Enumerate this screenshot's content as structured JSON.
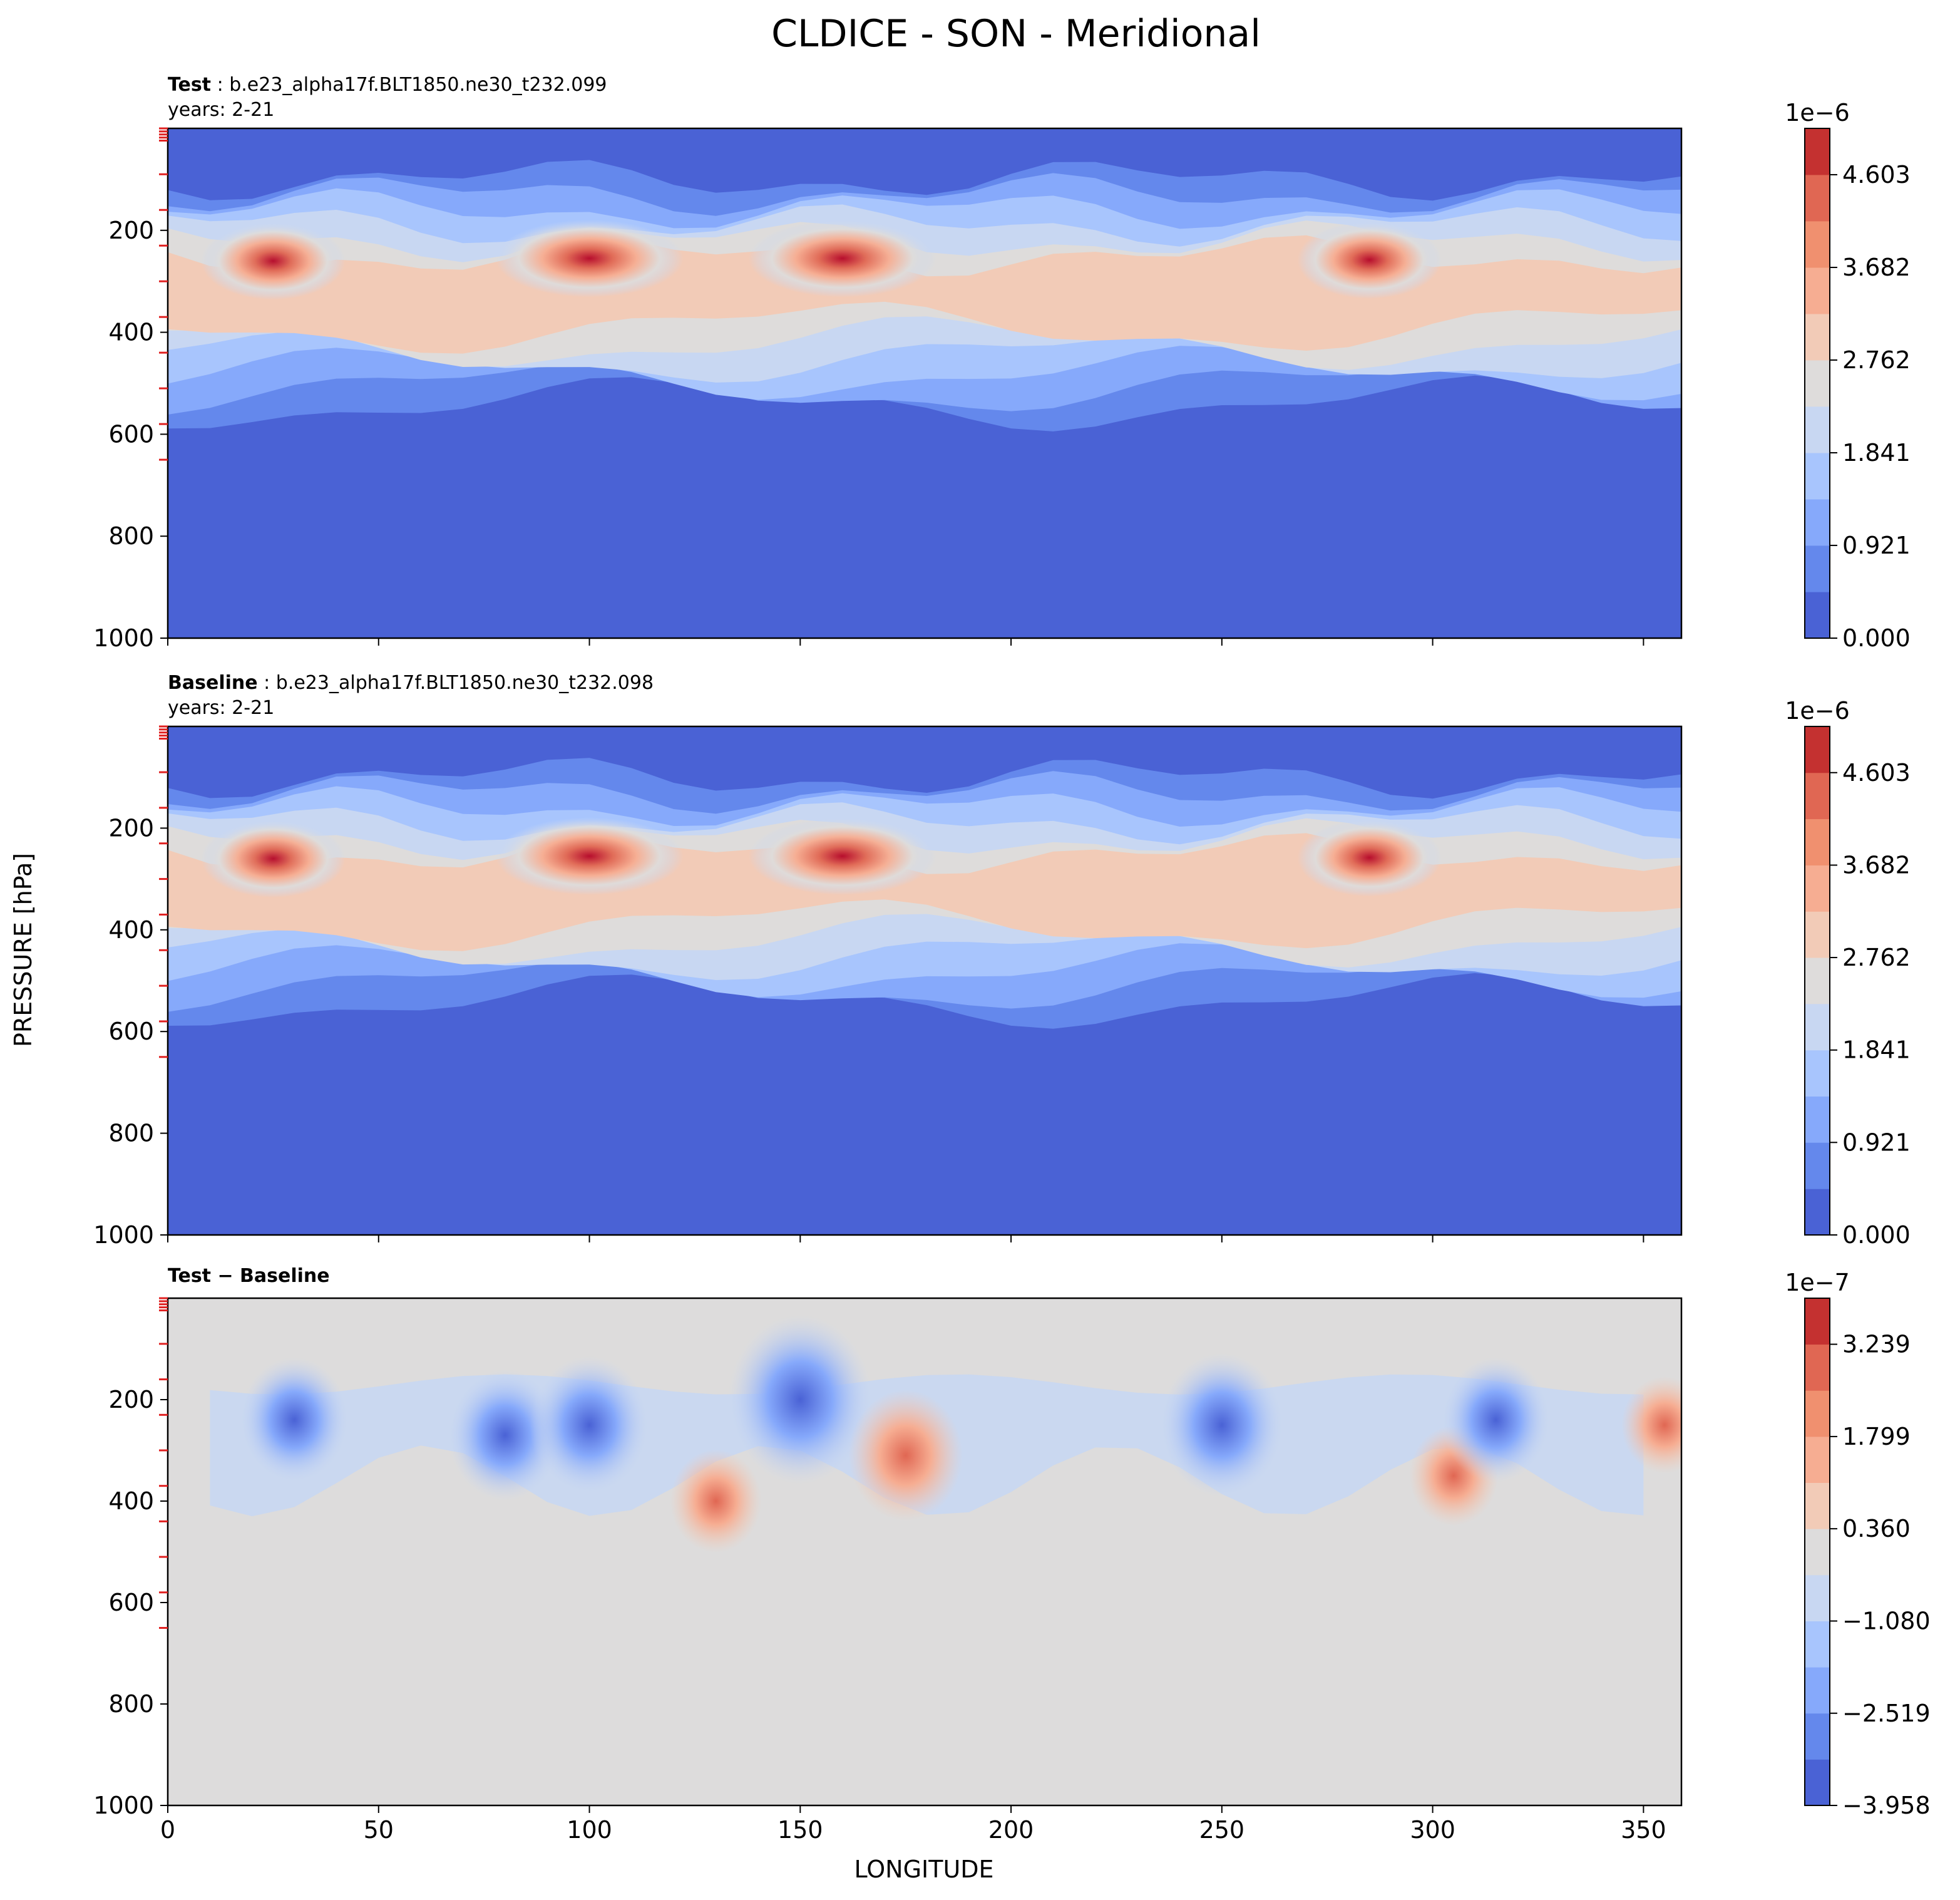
{
  "figure": {
    "title": "CLDICE - SON - Meridional",
    "ylabel": "PRESSURE [hPa]",
    "xlabel": "LONGITUDE",
    "x_ticks": [
      "0",
      "50",
      "100",
      "150",
      "200",
      "250",
      "300",
      "350"
    ],
    "y_ticks": [
      "200",
      "400",
      "600",
      "800",
      "1000"
    ]
  },
  "panels": [
    {
      "key": "test",
      "title_bold": "Test",
      "title_rest": ": b.e23_alpha17f.BLT1850.ne30_t232.099",
      "years": "years: 2-21",
      "colorbar_offset": "1e−6",
      "colorbar_ticks": [
        "0.000",
        "0.921",
        "1.841",
        "2.762",
        "3.682",
        "4.603"
      ]
    },
    {
      "key": "baseline",
      "title_bold": "Baseline",
      "title_rest": ": b.e23_alpha17f.BLT1850.ne30_t232.098",
      "years": "years: 2-21",
      "colorbar_offset": "1e−6",
      "colorbar_ticks": [
        "0.000",
        "0.921",
        "1.841",
        "2.762",
        "3.682",
        "4.603"
      ]
    },
    {
      "key": "diff",
      "title_bold": "Test − Baseline",
      "title_rest": "",
      "years": "",
      "colorbar_offset": "1e−7",
      "colorbar_ticks": [
        "−3.958",
        "−2.519",
        "−1.080",
        "0.360",
        "1.799",
        "3.239"
      ]
    }
  ],
  "chart_data": [
    {
      "type": "heatmap",
      "title": "Test : b.e23_alpha17f.BLT1850.ne30_t232.099",
      "subtitle": "years: 2-21",
      "xlabel": "",
      "ylabel": "PRESSURE [hPa]",
      "xlim": [
        0,
        359
      ],
      "ylim": [
        1000,
        0
      ],
      "x_ticks": [
        0,
        50,
        100,
        150,
        200,
        250,
        300,
        350
      ],
      "y_ticks": [
        200,
        400,
        600,
        800,
        1000
      ],
      "colorbar": {
        "scale": "1e-6",
        "ticks": [
          0.0,
          0.921,
          1.841,
          2.762,
          3.682,
          4.603
        ],
        "levels": [
          0.0,
          0.46,
          0.921,
          1.381,
          1.841,
          2.302,
          2.762,
          3.222,
          3.682,
          4.143,
          4.603,
          5.063
        ],
        "colors": [
          "#4a62d5",
          "#6488ec",
          "#86a9fb",
          "#a8c5fd",
          "#c8d7f2",
          "#dedcdb",
          "#f2cbb7",
          "#f6ad92",
          "#f0906f",
          "#e06753",
          "#c43130"
        ]
      },
      "cloud_bands": [
        {
          "lon": 25,
          "p": 260,
          "peak": 0.45
        },
        {
          "lon": 100,
          "p": 255,
          "peak": 0.45
        },
        {
          "lon": 160,
          "p": 255,
          "peak": 0.45
        },
        {
          "lon": 285,
          "p": 258,
          "peak": 0.45
        }
      ]
    },
    {
      "type": "heatmap",
      "title": "Baseline : b.e23_alpha17f.BLT1850.ne30_t232.098",
      "subtitle": "years: 2-21",
      "xlabel": "",
      "ylabel": "PRESSURE [hPa]",
      "xlim": [
        0,
        359
      ],
      "ylim": [
        1000,
        0
      ],
      "x_ticks": [
        0,
        50,
        100,
        150,
        200,
        250,
        300,
        350
      ],
      "y_ticks": [
        200,
        400,
        600,
        800,
        1000
      ],
      "colorbar": {
        "scale": "1e-6",
        "ticks": [
          0.0,
          0.921,
          1.841,
          2.762,
          3.682,
          4.603
        ],
        "levels": [
          0.0,
          0.46,
          0.921,
          1.381,
          1.841,
          2.302,
          2.762,
          3.222,
          3.682,
          4.143,
          4.603,
          5.063
        ],
        "colors": [
          "#4a62d5",
          "#6488ec",
          "#86a9fb",
          "#a8c5fd",
          "#c8d7f2",
          "#dedcdb",
          "#f2cbb7",
          "#f6ad92",
          "#f0906f",
          "#e06753",
          "#c43130"
        ]
      },
      "cloud_bands": [
        {
          "lon": 25,
          "p": 260,
          "peak": 0.45
        },
        {
          "lon": 100,
          "p": 255,
          "peak": 0.45
        },
        {
          "lon": 160,
          "p": 255,
          "peak": 0.45
        },
        {
          "lon": 285,
          "p": 258,
          "peak": 0.45
        }
      ]
    },
    {
      "type": "heatmap",
      "title": "Test − Baseline",
      "subtitle": "",
      "xlabel": "LONGITUDE",
      "ylabel": "PRESSURE [hPa]",
      "xlim": [
        0,
        359
      ],
      "ylim": [
        1000,
        0
      ],
      "x_ticks": [
        0,
        50,
        100,
        150,
        200,
        250,
        300,
        350
      ],
      "y_ticks": [
        200,
        400,
        600,
        800,
        1000
      ],
      "colorbar": {
        "scale": "1e-7",
        "ticks": [
          -3.958,
          -2.519,
          -1.08,
          0.36,
          1.799,
          3.239
        ],
        "levels": [
          -3.958,
          -3.238,
          -2.519,
          -1.799,
          -1.08,
          -0.36,
          0.36,
          1.08,
          1.799,
          2.519,
          3.239,
          3.958
        ],
        "colors": [
          "#4a62d5",
          "#6488ec",
          "#86a9fb",
          "#a8c5fd",
          "#c8d7f2",
          "#dddcdc",
          "#f2cbb7",
          "#f6ad92",
          "#f0906f",
          "#e06753",
          "#c43130"
        ]
      },
      "anomalies": [
        {
          "lon": 30,
          "p": 240,
          "value": -1.6
        },
        {
          "lon": 80,
          "p": 270,
          "value": -1.8
        },
        {
          "lon": 100,
          "p": 250,
          "value": -2.0
        },
        {
          "lon": 150,
          "p": 200,
          "value": -3.0
        },
        {
          "lon": 130,
          "p": 400,
          "value": 0.9
        },
        {
          "lon": 175,
          "p": 310,
          "value": 1.8
        },
        {
          "lon": 250,
          "p": 250,
          "value": -2.2
        },
        {
          "lon": 305,
          "p": 350,
          "value": 0.8
        },
        {
          "lon": 315,
          "p": 240,
          "value": -1.6
        },
        {
          "lon": 355,
          "p": 250,
          "value": 0.7
        }
      ]
    }
  ]
}
